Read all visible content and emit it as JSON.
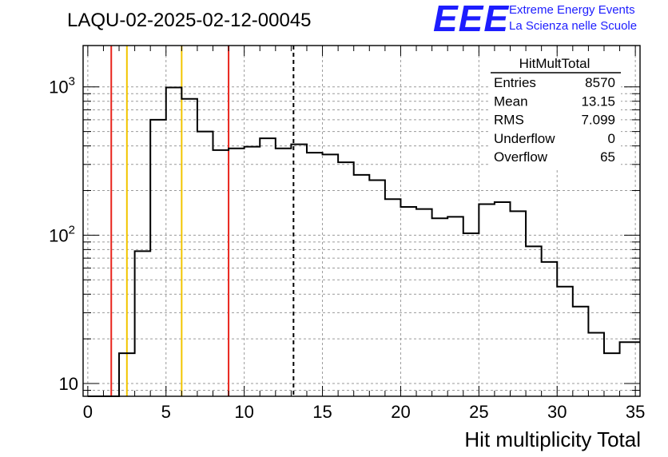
{
  "title": "LAQU-02-2025-02-12-00045",
  "logo": {
    "letters": "EEE",
    "line1": "Extreme Energy Events",
    "line2": "La Scienza nelle Scuole",
    "color": "#1d1dff"
  },
  "stats": {
    "name": "HitMultTotal",
    "rows": [
      {
        "label": "Entries",
        "value": "8570"
      },
      {
        "label": "Mean",
        "value": "13.15"
      },
      {
        "label": "RMS",
        "value": "7.099"
      },
      {
        "label": "Underflow",
        "value": "0"
      },
      {
        "label": "Overflow",
        "value": "65"
      }
    ]
  },
  "chart_data": {
    "type": "bar",
    "style": "step-histogram",
    "xlabel": "Hit multiplicity Total",
    "ylabel": "",
    "xlim": [
      -0.3,
      35.3
    ],
    "ylim": [
      8.2,
      1900
    ],
    "yscale": "log",
    "grid": true,
    "x_ticks": [
      "0",
      "5",
      "10",
      "15",
      "20",
      "25",
      "30",
      "35"
    ],
    "y_ticks": [
      "10",
      "10^2",
      "10^3"
    ],
    "bin_edges_start": 0,
    "bin_width": 1,
    "values": [
      0,
      0,
      16,
      78,
      600,
      990,
      830,
      500,
      375,
      385,
      395,
      450,
      385,
      410,
      360,
      350,
      310,
      255,
      235,
      175,
      155,
      150,
      130,
      133,
      103,
      162,
      167,
      145,
      84,
      66,
      45,
      33,
      22,
      16,
      19
    ],
    "vertical_lines": [
      {
        "x": 1.5,
        "color": "#e8241c",
        "style": "solid"
      },
      {
        "x": 2.5,
        "color": "#f2c500",
        "style": "solid"
      },
      {
        "x": 6.0,
        "color": "#f2c500",
        "style": "solid"
      },
      {
        "x": 9.0,
        "color": "#e8241c",
        "style": "solid"
      },
      {
        "x": 13.15,
        "color": "#000000",
        "style": "dashed"
      }
    ],
    "legend_placement": "top-right"
  }
}
